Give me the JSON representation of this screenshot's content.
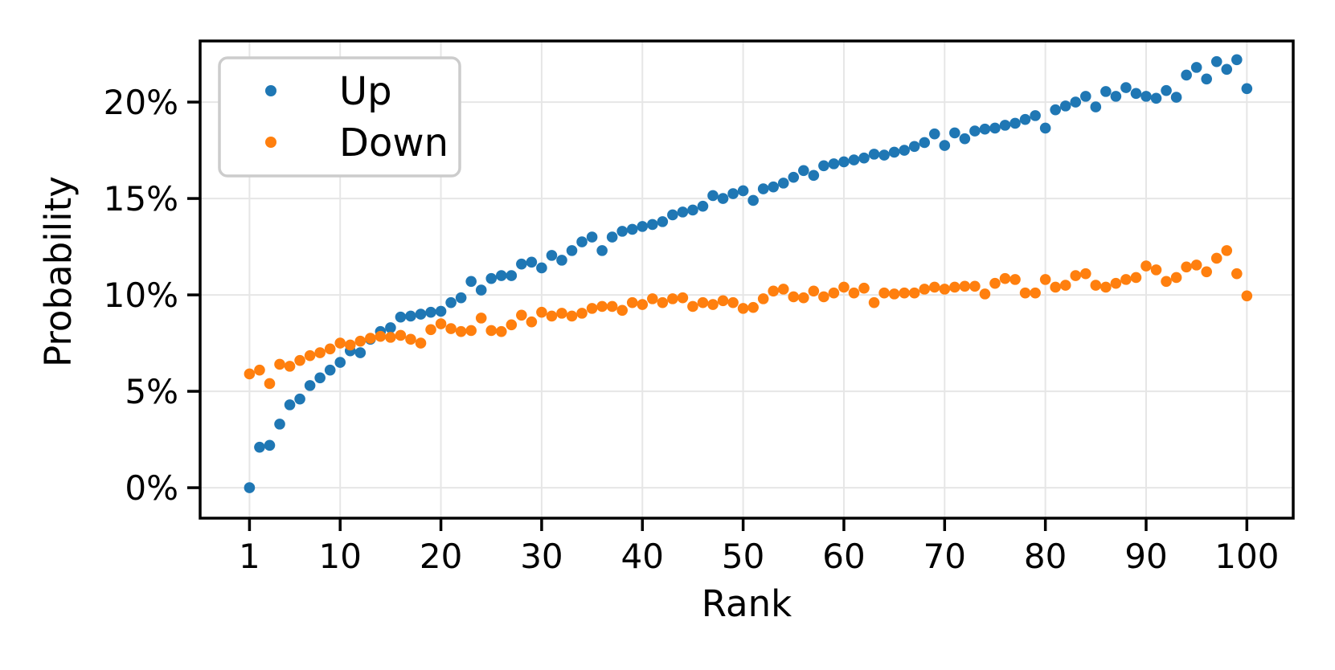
{
  "chart_data": {
    "type": "scatter",
    "title": "",
    "xlabel": "Rank",
    "ylabel": "Probability",
    "x_tick_labels": [
      "1",
      "10",
      "20",
      "30",
      "40",
      "50",
      "60",
      "70",
      "80",
      "90",
      "100"
    ],
    "x_tick_values": [
      1,
      10,
      20,
      30,
      40,
      50,
      60,
      70,
      80,
      90,
      100
    ],
    "y_tick_labels": [
      "0%",
      "5%",
      "10%",
      "15%",
      "20%"
    ],
    "y_tick_values": [
      0,
      5,
      10,
      15,
      20
    ],
    "xlim": [
      -3.9,
      104.6
    ],
    "ylim": [
      -1.58,
      23.17
    ],
    "grid": true,
    "legend_position": "upper-left",
    "marker": "circle",
    "x": [
      1,
      2,
      3,
      4,
      5,
      6,
      7,
      8,
      9,
      10,
      11,
      12,
      13,
      14,
      15,
      16,
      17,
      18,
      19,
      20,
      21,
      22,
      23,
      24,
      25,
      26,
      27,
      28,
      29,
      30,
      31,
      32,
      33,
      34,
      35,
      36,
      37,
      38,
      39,
      40,
      41,
      42,
      43,
      44,
      45,
      46,
      47,
      48,
      49,
      50,
      51,
      52,
      53,
      54,
      55,
      56,
      57,
      58,
      59,
      60,
      61,
      62,
      63,
      64,
      65,
      66,
      67,
      68,
      69,
      70,
      71,
      72,
      73,
      74,
      75,
      76,
      77,
      78,
      79,
      80,
      81,
      82,
      83,
      84,
      85,
      86,
      87,
      88,
      89,
      90,
      91,
      92,
      93,
      94,
      95,
      96,
      97,
      98,
      99,
      100
    ],
    "series": [
      {
        "name": "Up",
        "color": "#1f77b4",
        "values": [
          0.0,
          2.1,
          2.2,
          3.3,
          4.3,
          4.6,
          5.3,
          5.7,
          6.1,
          6.5,
          7.1,
          7.0,
          7.7,
          8.1,
          8.3,
          8.85,
          8.9,
          9.0,
          9.1,
          9.15,
          9.6,
          9.85,
          10.7,
          10.25,
          10.85,
          11.0,
          11.0,
          11.6,
          11.7,
          11.4,
          12.05,
          11.8,
          12.3,
          12.75,
          13.0,
          12.3,
          13.0,
          13.3,
          13.4,
          13.55,
          13.65,
          13.8,
          14.15,
          14.3,
          14.4,
          14.6,
          15.15,
          15.0,
          15.25,
          15.4,
          14.9,
          15.5,
          15.6,
          15.8,
          16.1,
          16.45,
          16.2,
          16.7,
          16.8,
          16.9,
          17.0,
          17.1,
          17.3,
          17.25,
          17.4,
          17.5,
          17.7,
          17.9,
          18.35,
          17.75,
          18.4,
          18.1,
          18.5,
          18.6,
          18.65,
          18.8,
          18.9,
          19.1,
          19.3,
          18.65,
          19.6,
          19.8,
          20.0,
          20.3,
          19.75,
          20.55,
          20.3,
          20.75,
          20.45,
          20.3,
          20.2,
          20.6,
          20.25,
          21.4,
          21.8,
          21.2,
          22.1,
          21.7,
          22.2,
          20.7
        ]
      },
      {
        "name": "Down",
        "color": "#ff7f0e",
        "values": [
          5.9,
          6.1,
          5.4,
          6.4,
          6.3,
          6.6,
          6.85,
          7.0,
          7.2,
          7.5,
          7.4,
          7.6,
          7.75,
          7.85,
          7.8,
          7.9,
          7.7,
          7.5,
          8.2,
          8.5,
          8.25,
          8.1,
          8.15,
          8.8,
          8.15,
          8.1,
          8.45,
          8.95,
          8.6,
          9.1,
          8.9,
          9.05,
          8.9,
          9.05,
          9.3,
          9.4,
          9.4,
          9.2,
          9.6,
          9.5,
          9.8,
          9.6,
          9.8,
          9.85,
          9.4,
          9.6,
          9.5,
          9.7,
          9.6,
          9.3,
          9.35,
          9.8,
          10.2,
          10.3,
          9.9,
          9.85,
          10.2,
          9.9,
          10.1,
          10.4,
          10.1,
          10.35,
          9.6,
          10.1,
          10.05,
          10.1,
          10.1,
          10.3,
          10.4,
          10.3,
          10.4,
          10.45,
          10.45,
          10.05,
          10.6,
          10.85,
          10.8,
          10.1,
          10.1,
          10.8,
          10.4,
          10.5,
          11.0,
          11.1,
          10.5,
          10.4,
          10.6,
          10.8,
          10.9,
          11.5,
          11.3,
          10.7,
          10.9,
          11.45,
          11.55,
          11.2,
          11.9,
          12.3,
          11.1,
          9.95
        ]
      }
    ]
  },
  "colors": {
    "up": "#1f77b4",
    "down": "#ff7f0e",
    "grid": "#e6e6e6",
    "spine": "#000000",
    "tick": "#000000",
    "legend_border": "#cccccc",
    "background": "#ffffff"
  }
}
